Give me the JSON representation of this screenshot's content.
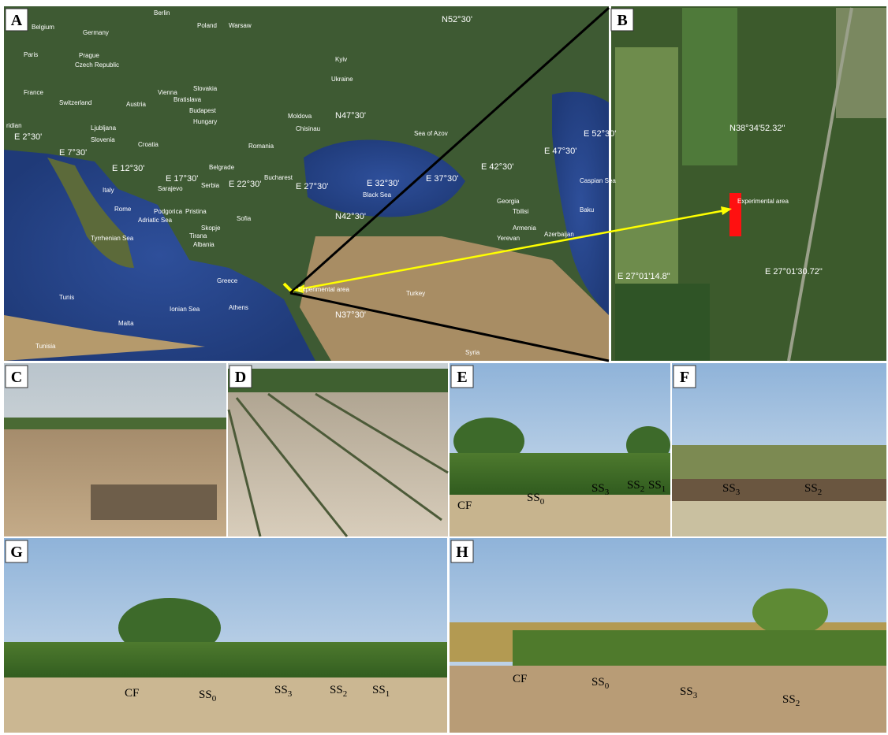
{
  "panel_a": {
    "letter": "A",
    "coordinates": [
      "N52°30'",
      "N47°30'",
      "N42°30'",
      "N37°30'",
      "E 2°30'",
      "E 7°30'",
      "E 12°30'",
      "E 17°30'",
      "E 22°30'",
      "E 27°30'",
      "E 32°30'",
      "E 37°30'",
      "E 42°30'",
      "E 47°30'",
      "E 52°30'"
    ],
    "places": [
      "Berlin",
      "Warsaw",
      "Poland",
      "Germany",
      "Belgium",
      "Paris",
      "Prague",
      "Czech Republic",
      "Kyiv",
      "Ukraine",
      "Slovakia",
      "Vienna",
      "Bratislava",
      "Austria",
      "Budapest",
      "Hungary",
      "Switzerland",
      "France",
      "Moldova",
      "Chisinau",
      "Ljubljana",
      "Slovenia",
      "Croatia",
      "Romania",
      "Sea of Azov",
      "Belgrade",
      "Sarajevo",
      "Serbia",
      "Bucharest",
      "Italy",
      "Black Sea",
      "Rome",
      "Podgorica",
      "Pristina",
      "Sofia",
      "Skopje",
      "Tirana",
      "Albania",
      "Tyrrhenian Sea",
      "Adriatic Sea",
      "Georgia",
      "Tbilisi",
      "Baku",
      "Caspian Sea",
      "Armenia",
      "Azerbaijan",
      "Yerevan",
      "Turkey",
      "Greece",
      "Athens",
      "Ionian Sea",
      "Malta",
      "Tunis",
      "Tunisia",
      "Syria",
      "ridian"
    ],
    "marker": "Experimental area"
  },
  "panel_b": {
    "letter": "B",
    "latitude": "N38°34'52.32\"",
    "longitude_west": "E 27°01'14.8\"",
    "longitude_east": "E 27°01'30.72\"",
    "marker": "Experimental area"
  },
  "panel_c": {
    "letter": "C"
  },
  "panel_d": {
    "letter": "D"
  },
  "panel_e": {
    "letter": "E",
    "labels": [
      {
        "base": "CF"
      },
      {
        "base": "SS",
        "sub": "0"
      },
      {
        "base": "SS",
        "sub": "3"
      },
      {
        "base": "SS",
        "sub": "2"
      },
      {
        "base": "SS",
        "sub": "1"
      }
    ]
  },
  "panel_f": {
    "letter": "F",
    "labels": [
      {
        "base": "SS",
        "sub": "3"
      },
      {
        "base": "SS",
        "sub": "2"
      }
    ]
  },
  "panel_g": {
    "letter": "G",
    "labels": [
      {
        "base": "CF"
      },
      {
        "base": "SS",
        "sub": "0"
      },
      {
        "base": "SS",
        "sub": "3"
      },
      {
        "base": "SS",
        "sub": "2"
      },
      {
        "base": "SS",
        "sub": "1"
      }
    ]
  },
  "panel_h": {
    "letter": "H",
    "labels": [
      {
        "base": "CF"
      },
      {
        "base": "SS",
        "sub": "0"
      },
      {
        "base": "SS",
        "sub": "3"
      },
      {
        "base": "SS",
        "sub": "2"
      }
    ]
  }
}
